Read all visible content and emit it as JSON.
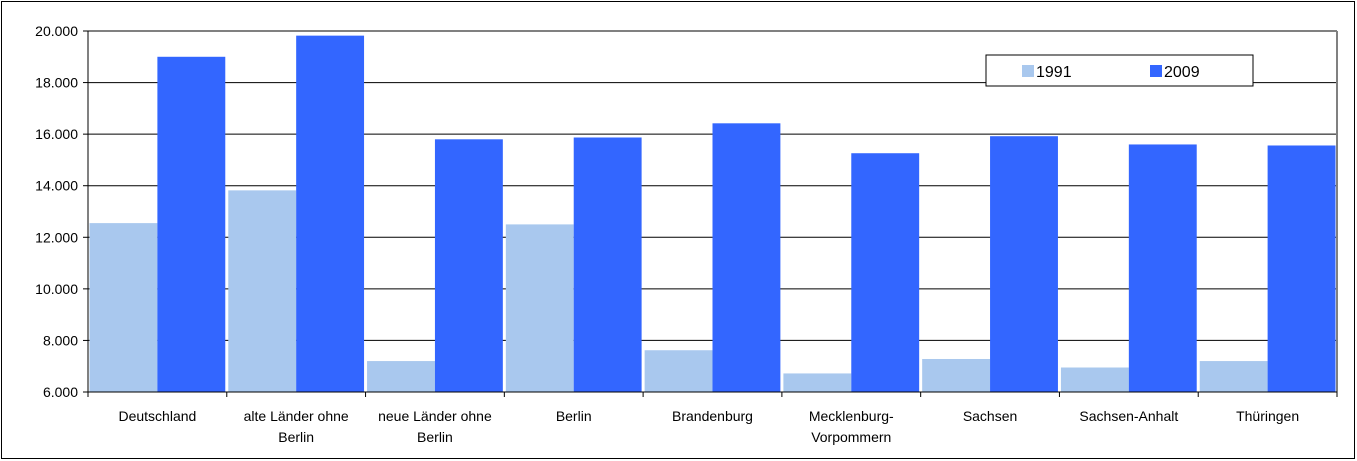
{
  "chart_data": {
    "type": "bar",
    "title": "",
    "xlabel": "",
    "ylabel": "",
    "categories": [
      [
        "Deutschland"
      ],
      [
        "alte Länder ohne",
        "Berlin"
      ],
      [
        "neue Länder ohne",
        "Berlin"
      ],
      [
        "Berlin"
      ],
      [
        "Brandenburg"
      ],
      [
        "Mecklenburg-",
        "Vorpommern"
      ],
      [
        "Sachsen"
      ],
      [
        "Sachsen-Anhalt"
      ],
      [
        "Thüringen"
      ]
    ],
    "series": [
      {
        "name": "1991",
        "color": "#a9c8ee",
        "values": [
          12550,
          13820,
          7200,
          12500,
          7620,
          6720,
          7280,
          6950,
          7200
        ]
      },
      {
        "name": "2009",
        "color": "#3366ff",
        "values": [
          19000,
          19820,
          15800,
          15870,
          16420,
          15260,
          15920,
          15600,
          15560
        ]
      }
    ],
    "ylim": [
      6000,
      20000
    ],
    "yticks": [
      6000,
      8000,
      10000,
      12000,
      14000,
      16000,
      18000,
      20000
    ],
    "ytick_labels": [
      "6.000",
      "8.000",
      "10.000",
      "12.000",
      "14.000",
      "16.000",
      "18.000",
      "20.000"
    ],
    "grid": true,
    "legend": {
      "placement": "top-right",
      "entries": [
        "1991",
        "2009"
      ]
    }
  }
}
